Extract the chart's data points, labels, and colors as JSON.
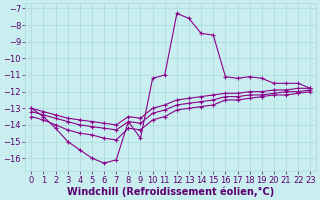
{
  "bg_color": "#c8eef0",
  "grid_color": "#aad8dc",
  "line_color": "#8b008b",
  "xlabel": "Windchill (Refroidissement éolien,°C)",
  "xlabel_color": "#5c0070",
  "xlabel_fontsize": 7.0,
  "tick_fontsize": 6.0,
  "tick_color": "#5c0070",
  "ylim": [
    -16.8,
    -6.7
  ],
  "xlim": [
    -0.5,
    23.5
  ],
  "yticks": [
    -16,
    -15,
    -14,
    -13,
    -12,
    -11,
    -10,
    -9,
    -8,
    -7
  ],
  "xticks": [
    0,
    1,
    2,
    3,
    4,
    5,
    6,
    7,
    8,
    9,
    10,
    11,
    12,
    13,
    14,
    15,
    16,
    17,
    18,
    19,
    20,
    21,
    22,
    23
  ],
  "line1_x": [
    0,
    1,
    2,
    3,
    4,
    5,
    6,
    7,
    8,
    9,
    10,
    11,
    12,
    13,
    14,
    15,
    16,
    17,
    18,
    19,
    20,
    21,
    22,
    23
  ],
  "line1_y": [
    -13.0,
    -13.5,
    -14.2,
    -15.0,
    -15.5,
    -16.0,
    -16.3,
    -16.1,
    -13.8,
    -14.8,
    -11.2,
    -11.0,
    -7.3,
    -7.6,
    -8.5,
    -8.6,
    -11.1,
    -11.2,
    -11.1,
    -11.2,
    -11.5,
    -11.5,
    -11.5,
    -11.8
  ],
  "line2_x": [
    0,
    1,
    2,
    3,
    4,
    5,
    6,
    7,
    8,
    9,
    10,
    11,
    12,
    13,
    14,
    15,
    16,
    17,
    18,
    19,
    20,
    21,
    22,
    23
  ],
  "line2_y": [
    -13.0,
    -13.2,
    -13.4,
    -13.6,
    -13.7,
    -13.8,
    -13.9,
    -14.0,
    -13.5,
    -13.6,
    -13.0,
    -12.8,
    -12.5,
    -12.4,
    -12.3,
    -12.2,
    -12.1,
    -12.1,
    -12.0,
    -12.0,
    -11.9,
    -11.9,
    -11.8,
    -11.8
  ],
  "line3_x": [
    0,
    1,
    2,
    3,
    4,
    5,
    6,
    7,
    8,
    9,
    10,
    11,
    12,
    13,
    14,
    15,
    16,
    17,
    18,
    19,
    20,
    21,
    22,
    23
  ],
  "line3_y": [
    -13.2,
    -13.4,
    -13.6,
    -13.8,
    -14.0,
    -14.1,
    -14.2,
    -14.3,
    -13.8,
    -13.9,
    -13.3,
    -13.1,
    -12.8,
    -12.7,
    -12.6,
    -12.5,
    -12.3,
    -12.3,
    -12.2,
    -12.2,
    -12.1,
    -12.0,
    -12.0,
    -11.9
  ],
  "line4_x": [
    0,
    1,
    2,
    3,
    4,
    5,
    6,
    7,
    8,
    9,
    10,
    11,
    12,
    13,
    14,
    15,
    16,
    17,
    18,
    19,
    20,
    21,
    22,
    23
  ],
  "line4_y": [
    -13.5,
    -13.7,
    -14.0,
    -14.3,
    -14.5,
    -14.6,
    -14.8,
    -14.9,
    -14.2,
    -14.3,
    -13.7,
    -13.5,
    -13.1,
    -13.0,
    -12.9,
    -12.8,
    -12.5,
    -12.5,
    -12.4,
    -12.3,
    -12.2,
    -12.2,
    -12.1,
    -12.0
  ]
}
